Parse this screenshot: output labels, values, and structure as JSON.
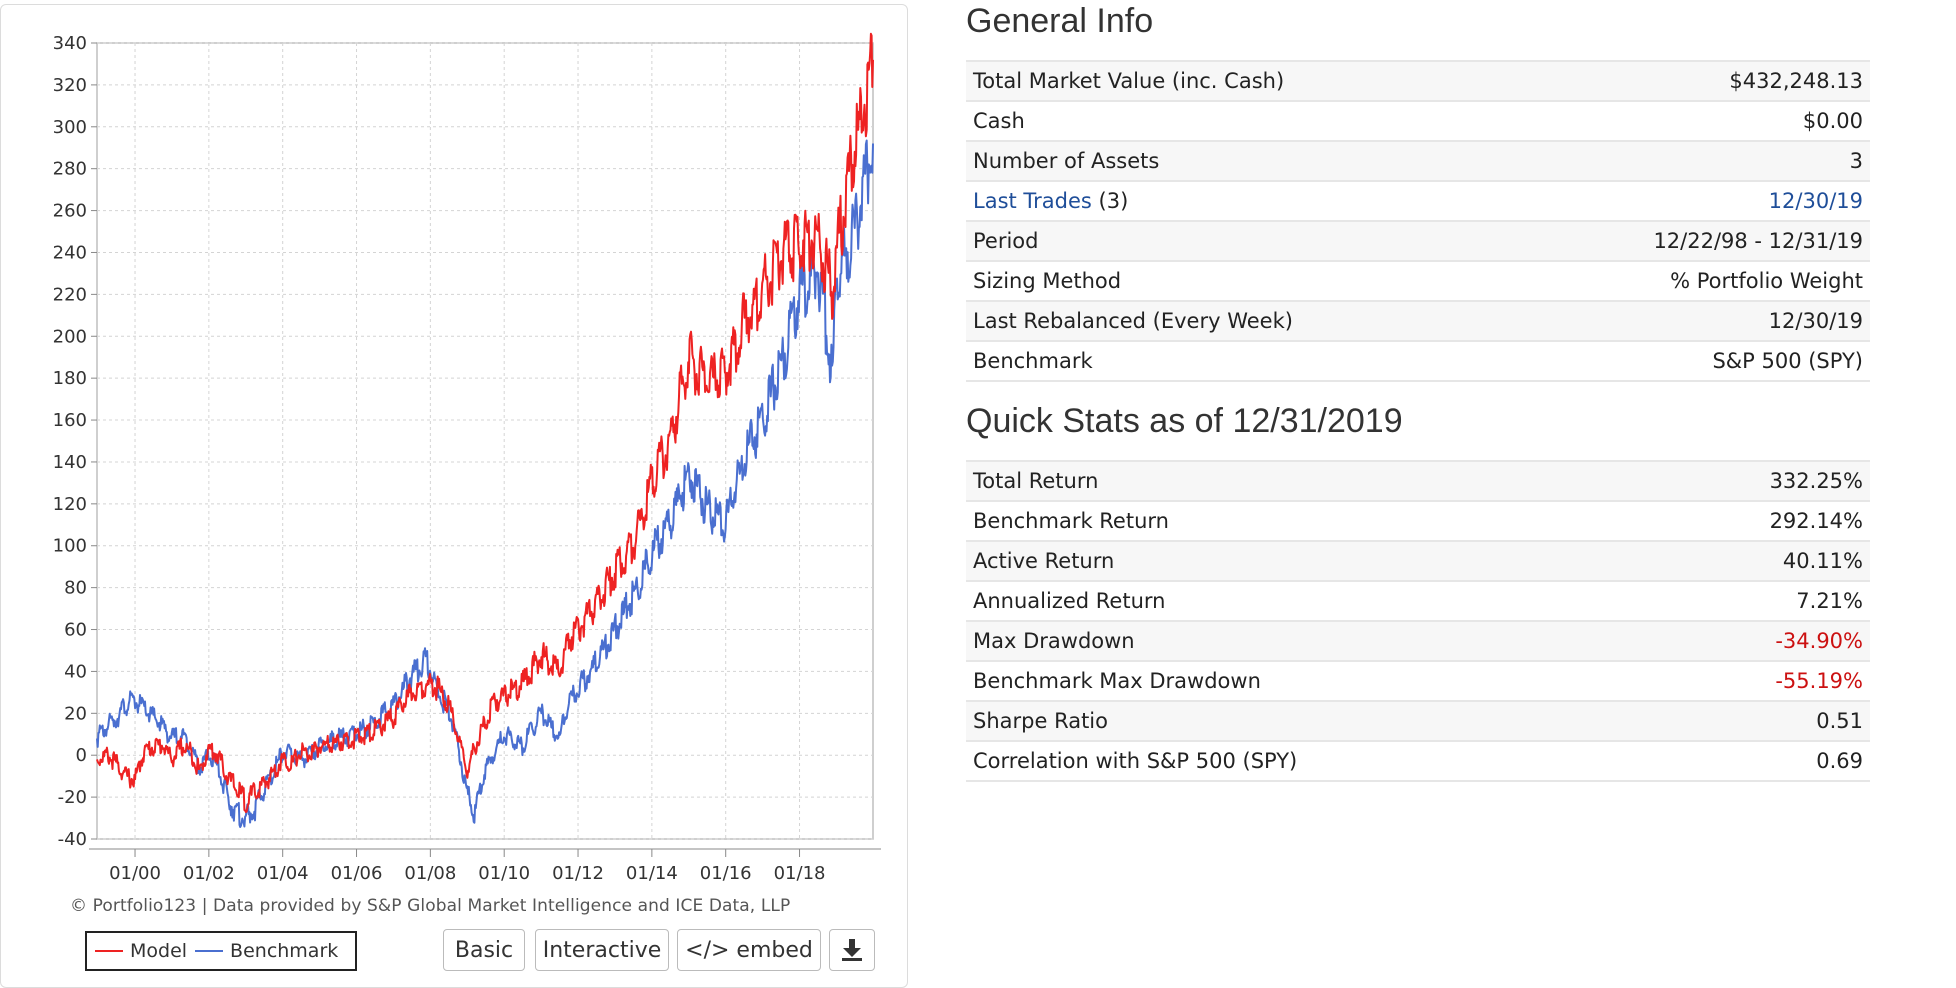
{
  "chart": {
    "credit": "© Portfolio123 | Data provided by S&P Global Market Intelligence and ICE Data, LLP",
    "legend": {
      "model": "Model",
      "benchmark": "Benchmark"
    },
    "buttons": {
      "basic": "Basic",
      "interactive": "Interactive",
      "embed": "</> embed"
    }
  },
  "chart_data": {
    "type": "line",
    "x_tick_labels": [
      "01/00",
      "01/02",
      "01/04",
      "01/06",
      "01/08",
      "01/10",
      "01/12",
      "01/14",
      "01/16",
      "01/18"
    ],
    "y_ticks": [
      -40,
      -20,
      0,
      20,
      40,
      60,
      80,
      100,
      120,
      140,
      160,
      180,
      200,
      220,
      240,
      260,
      280,
      300,
      320,
      340
    ],
    "xlim": [
      "1998-12-22",
      "2019-12-31"
    ],
    "ylim": [
      -40,
      340
    ],
    "grid": true,
    "legend_position": "bottom-left",
    "colors": {
      "model": "#ee2222",
      "benchmark": "#4a6fd0"
    },
    "series": [
      {
        "name": "Model",
        "x": [
          1998.97,
          1999.25,
          1999.5,
          1999.75,
          2000.0,
          2000.25,
          2000.5,
          2000.75,
          2001.0,
          2001.25,
          2001.5,
          2001.75,
          2002.0,
          2002.25,
          2002.5,
          2002.75,
          2003.0,
          2003.25,
          2003.5,
          2003.75,
          2004.0,
          2004.25,
          2004.5,
          2004.75,
          2005.0,
          2005.5,
          2006.0,
          2006.5,
          2007.0,
          2007.5,
          2007.9,
          2008.2,
          2008.5,
          2008.75,
          2009.0,
          2009.2,
          2009.5,
          2009.75,
          2010.0,
          2010.5,
          2011.0,
          2011.5,
          2011.75,
          2012.0,
          2012.5,
          2013.0,
          2013.5,
          2014.0,
          2014.5,
          2015.0,
          2015.5,
          2016.0,
          2016.5,
          2017.0,
          2017.5,
          2018.0,
          2018.5,
          2018.9,
          2019.0,
          2019.5,
          2019.99
        ],
        "values": [
          -2,
          0,
          -4,
          -10,
          -12,
          2,
          4,
          5,
          -2,
          4,
          2,
          -8,
          3,
          0,
          -10,
          -16,
          -22,
          -18,
          -14,
          -8,
          -2,
          -4,
          2,
          0,
          4,
          6,
          8,
          12,
          18,
          30,
          34,
          32,
          24,
          8,
          -8,
          4,
          16,
          26,
          28,
          34,
          48,
          40,
          55,
          60,
          72,
          88,
          100,
          132,
          150,
          190,
          178,
          182,
          208,
          222,
          238,
          245,
          250,
          220,
          240,
          290,
          332
        ]
      },
      {
        "name": "Benchmark",
        "x": [
          1998.97,
          1999.25,
          1999.5,
          1999.75,
          2000.0,
          2000.25,
          2000.5,
          2000.75,
          2001.0,
          2001.25,
          2001.5,
          2001.75,
          2002.0,
          2002.25,
          2002.5,
          2002.75,
          2003.0,
          2003.25,
          2003.5,
          2003.75,
          2004.0,
          2004.25,
          2004.5,
          2004.75,
          2005.0,
          2005.5,
          2006.0,
          2006.5,
          2007.0,
          2007.5,
          2007.9,
          2008.2,
          2008.5,
          2008.75,
          2009.0,
          2009.2,
          2009.5,
          2009.75,
          2010.0,
          2010.5,
          2011.0,
          2011.5,
          2011.75,
          2012.0,
          2012.5,
          2013.0,
          2013.5,
          2014.0,
          2014.5,
          2015.0,
          2015.5,
          2016.0,
          2016.5,
          2017.0,
          2017.5,
          2018.0,
          2018.5,
          2018.9,
          2019.0,
          2019.5,
          2019.99
        ],
        "values": [
          8,
          14,
          18,
          24,
          26,
          22,
          18,
          14,
          8,
          10,
          4,
          -6,
          0,
          -6,
          -20,
          -28,
          -30,
          -26,
          -16,
          -8,
          2,
          0,
          -2,
          0,
          4,
          8,
          10,
          16,
          24,
          38,
          46,
          30,
          22,
          4,
          -18,
          -28,
          -6,
          2,
          10,
          4,
          20,
          8,
          26,
          32,
          44,
          60,
          76,
          96,
          112,
          134,
          118,
          110,
          142,
          160,
          185,
          220,
          232,
          180,
          228,
          250,
          292
        ]
      }
    ]
  },
  "general_info": {
    "title": "General Info",
    "rows": [
      {
        "label": "Total Market Value (inc. Cash)",
        "value": "$432,248.13"
      },
      {
        "label": "Cash",
        "value": "$0.00"
      },
      {
        "label": "Number of Assets",
        "value": "3"
      },
      {
        "label": "Last Trades",
        "label_suffix": "(3)",
        "value": "12/30/19"
      },
      {
        "label": "Period",
        "value": "12/22/98 - 12/31/19"
      },
      {
        "label": "Sizing Method",
        "value": "% Portfolio Weight"
      },
      {
        "label": "Last Rebalanced (Every Week)",
        "value": "12/30/19"
      },
      {
        "label": "Benchmark",
        "value": "S&P 500 (SPY)"
      }
    ]
  },
  "quick_stats": {
    "title": "Quick Stats as of 12/31/2019",
    "rows": [
      {
        "label": "Total Return",
        "value": "332.25%"
      },
      {
        "label": "Benchmark Return",
        "value": "292.14%"
      },
      {
        "label": "Active Return",
        "value": "40.11%"
      },
      {
        "label": "Annualized Return",
        "value": "7.21%"
      },
      {
        "label": "Max Drawdown",
        "value": "-34.90%"
      },
      {
        "label": "Benchmark Max Drawdown",
        "value": "-55.19%"
      },
      {
        "label": "Sharpe Ratio",
        "value": "0.51"
      },
      {
        "label": "Correlation with S&P 500 (SPY)",
        "value": "0.69"
      }
    ]
  }
}
